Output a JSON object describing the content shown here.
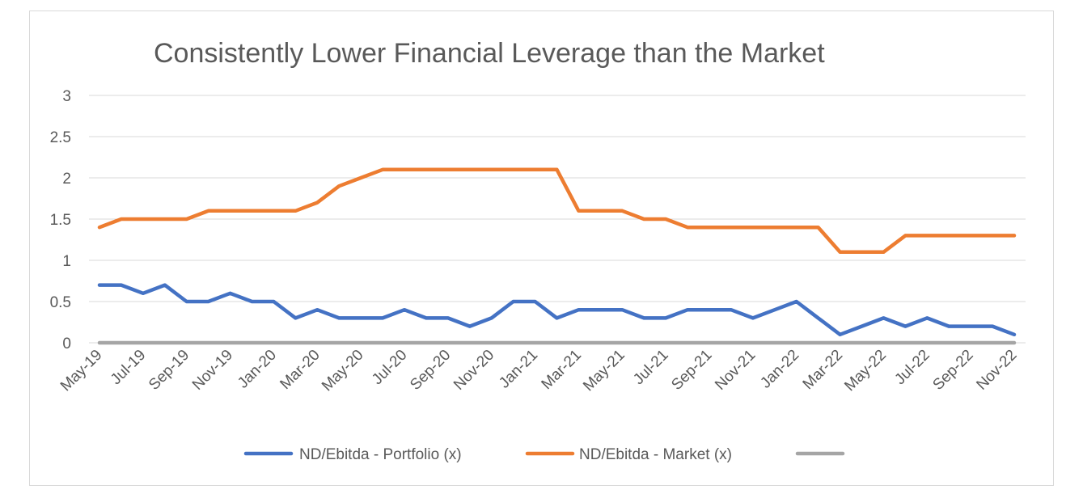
{
  "chart_data": {
    "type": "line",
    "title": "Consistently Lower Financial Leverage than the Market",
    "xlabel": "",
    "ylabel": "",
    "ylim": [
      0,
      3
    ],
    "yticks": [
      "0",
      "0.5",
      "1",
      "1.5",
      "2",
      "2.5",
      "3"
    ],
    "grid": true,
    "legend_position": "bottom",
    "x": [
      "May-19",
      "Jun-19",
      "Jul-19",
      "Aug-19",
      "Sep-19",
      "Oct-19",
      "Nov-19",
      "Dec-19",
      "Jan-20",
      "Feb-20",
      "Mar-20",
      "Apr-20",
      "May-20",
      "Jun-20",
      "Jul-20",
      "Aug-20",
      "Sep-20",
      "Oct-20",
      "Nov-20",
      "Dec-20",
      "Jan-21",
      "Feb-21",
      "Mar-21",
      "Apr-21",
      "May-21",
      "Jun-21",
      "Jul-21",
      "Aug-21",
      "Sep-21",
      "Oct-21",
      "Nov-21",
      "Dec-21",
      "Jan-22",
      "Feb-22",
      "Mar-22",
      "Apr-22",
      "May-22",
      "Jun-22",
      "Jul-22",
      "Aug-22",
      "Sep-22",
      "Oct-22",
      "Nov-22"
    ],
    "x_tick_labels": [
      "May-19",
      "Jul-19",
      "Sep-19",
      "Nov-19",
      "Jan-20",
      "Mar-20",
      "May-20",
      "Jul-20",
      "Sep-20",
      "Nov-20",
      "Jan-21",
      "Mar-21",
      "May-21",
      "Jul-21",
      "Sep-21",
      "Nov-21",
      "Jan-22",
      "Mar-22",
      "May-22",
      "Jul-22",
      "Sep-22",
      "Nov-22"
    ],
    "series": [
      {
        "name": "ND/Ebitda - Portfolio (x)",
        "color": "#4472c4",
        "values": [
          0.7,
          0.7,
          0.6,
          0.7,
          0.5,
          0.5,
          0.6,
          0.5,
          0.5,
          0.3,
          0.4,
          0.3,
          0.3,
          0.3,
          0.4,
          0.3,
          0.3,
          0.2,
          0.3,
          0.5,
          0.5,
          0.3,
          0.4,
          0.4,
          0.4,
          0.3,
          0.3,
          0.4,
          0.4,
          0.4,
          0.3,
          0.4,
          0.5,
          0.3,
          0.1,
          0.2,
          0.3,
          0.2,
          0.3,
          0.2,
          0.2,
          0.2,
          0.1
        ]
      },
      {
        "name": "ND/Ebitda - Market (x)",
        "color": "#ed7d31",
        "values": [
          1.4,
          1.5,
          1.5,
          1.5,
          1.5,
          1.6,
          1.6,
          1.6,
          1.6,
          1.6,
          1.7,
          1.9,
          2.0,
          2.1,
          2.1,
          2.1,
          2.1,
          2.1,
          2.1,
          2.1,
          2.1,
          2.1,
          1.6,
          1.6,
          1.6,
          1.5,
          1.5,
          1.4,
          1.4,
          1.4,
          1.4,
          1.4,
          1.4,
          1.4,
          1.1,
          1.1,
          1.1,
          1.3,
          1.3,
          1.3,
          1.3,
          1.3,
          1.3
        ]
      },
      {
        "name": "",
        "color": "#a5a5a5",
        "values": [
          0,
          0,
          0,
          0,
          0,
          0,
          0,
          0,
          0,
          0,
          0,
          0,
          0,
          0,
          0,
          0,
          0,
          0,
          0,
          0,
          0,
          0,
          0,
          0,
          0,
          0,
          0,
          0,
          0,
          0,
          0,
          0,
          0,
          0,
          0,
          0,
          0,
          0,
          0,
          0,
          0,
          0,
          0
        ]
      }
    ]
  }
}
